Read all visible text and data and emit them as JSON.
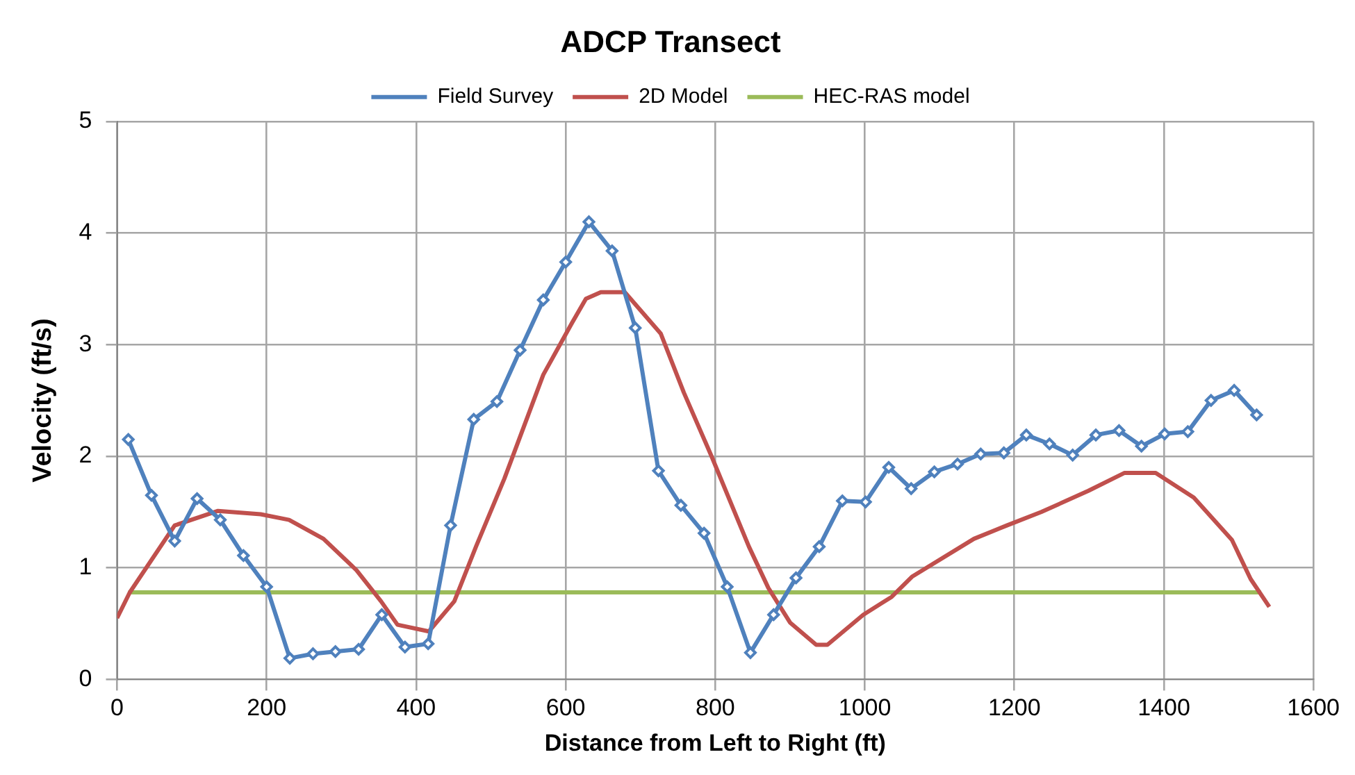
{
  "chart_data": {
    "type": "line",
    "title": "ADCP Transect",
    "xlabel": "Distance from Left to Right (ft)",
    "ylabel": "Velocity (ft/s)",
    "xlim": [
      0,
      1600
    ],
    "xticks": [
      0,
      200,
      400,
      600,
      800,
      1000,
      1200,
      1400,
      1600
    ],
    "ylim": [
      0,
      5
    ],
    "yticks": [
      0,
      1,
      2,
      3,
      4,
      5
    ],
    "grid": true,
    "legend": "top",
    "line_style": "solid",
    "series": [
      {
        "name": "Field Survey",
        "color": "#4f81bd",
        "marker": "diamond",
        "x": [
          15,
          46,
          77,
          107,
          138,
          169,
          200,
          231,
          262,
          292,
          323,
          354,
          385,
          416,
          446,
          477,
          508,
          539,
          570,
          600,
          631,
          662,
          693,
          724,
          754,
          785,
          816,
          847,
          878,
          908,
          939,
          970,
          1001,
          1032,
          1062,
          1093,
          1124,
          1155,
          1186,
          1216,
          1247,
          1278,
          1309,
          1340,
          1370,
          1401,
          1432,
          1463,
          1494,
          1524
        ],
        "values": [
          2.15,
          1.65,
          1.24,
          1.62,
          1.43,
          1.11,
          0.83,
          0.19,
          0.23,
          0.25,
          0.27,
          0.58,
          0.29,
          0.32,
          1.38,
          2.33,
          2.49,
          2.95,
          3.4,
          3.74,
          4.1,
          3.84,
          3.15,
          1.87,
          1.56,
          1.31,
          0.83,
          0.24,
          0.58,
          0.91,
          1.19,
          1.6,
          1.59,
          1.9,
          1.71,
          1.86,
          1.93,
          2.02,
          2.03,
          2.19,
          2.11,
          2.01,
          2.19,
          2.23,
          2.09,
          2.2,
          2.22,
          2.5,
          2.59,
          2.37
        ]
      },
      {
        "name": "2D Model",
        "color": "#c0504d",
        "marker": "none",
        "x": [
          0,
          17,
          77,
          135,
          192,
          230,
          276,
          320,
          353,
          375,
          417,
          451,
          480,
          518,
          570,
          608,
          627,
          647,
          679,
          727,
          758,
          795,
          845,
          871,
          900,
          935,
          950,
          998,
          1036,
          1063,
          1146,
          1190,
          1236,
          1299,
          1347,
          1389,
          1440,
          1491,
          1516,
          1541
        ],
        "values": [
          0.55,
          0.78,
          1.38,
          1.51,
          1.48,
          1.43,
          1.26,
          0.98,
          0.7,
          0.49,
          0.43,
          0.7,
          1.19,
          1.8,
          2.73,
          3.19,
          3.41,
          3.47,
          3.47,
          3.1,
          2.57,
          2.0,
          1.19,
          0.82,
          0.51,
          0.31,
          0.31,
          0.58,
          0.74,
          0.92,
          1.26,
          1.38,
          1.5,
          1.69,
          1.85,
          1.85,
          1.63,
          1.25,
          0.9,
          0.65
        ]
      },
      {
        "name": "HEC-RAS model",
        "color": "#9bbb59",
        "marker": "none",
        "x": [
          15,
          1530
        ],
        "values": [
          0.78,
          0.78
        ]
      }
    ]
  }
}
